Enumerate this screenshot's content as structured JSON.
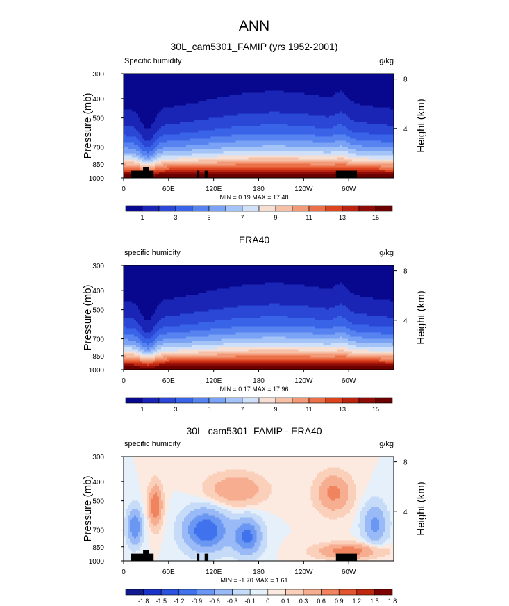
{
  "figure": {
    "title": "ANN"
  },
  "colors": {
    "full_levels": [
      "#08088e",
      "#1a24b5",
      "#2a47d6",
      "#3a64e8",
      "#5683f0",
      "#7aa2f5",
      "#a4c4f8",
      "#cfe0f8",
      "#f6ded2",
      "#f6c0a6",
      "#f29a78",
      "#eb6f47",
      "#dc4420",
      "#bb2410",
      "#8e0b06",
      "#6b0000"
    ],
    "diff_levels": [
      "#0f1b8f",
      "#1b33c6",
      "#2c53e0",
      "#3f72ec",
      "#6a97f2",
      "#99baf6",
      "#c6dbf8",
      "#e6f0fa",
      "#fce9df",
      "#fad0bb",
      "#f7ad8f",
      "#f0845f",
      "#e2552e",
      "#c0280e",
      "#7e0000"
    ],
    "land": "#000000"
  },
  "chart_data": [
    {
      "type": "heatmap",
      "panel": "top",
      "title": "30L_cam5301_FAMIP (yrs 1952-2001)",
      "left_label": "Specific humidity",
      "right_label": "g/kg",
      "ylabel": "Pressure (mb)",
      "y2label": "Height (km)",
      "xlim": [
        0,
        360
      ],
      "ylim": [
        1000,
        300
      ],
      "x_ticks": [
        "0",
        "60E",
        "120E",
        "180",
        "120W",
        "60W"
      ],
      "y_ticks": [
        "300",
        "400",
        "500",
        "700",
        "850",
        "1000"
      ],
      "y2_ticks": [
        "8",
        "4"
      ],
      "min": 0.19,
      "max": 17.48,
      "minmax_text": "MIN =   0.19  MAX =  17.48",
      "colorbar_labels": [
        "1",
        "3",
        "5",
        "7",
        "9",
        "11",
        "13",
        "15"
      ]
    },
    {
      "type": "heatmap",
      "panel": "middle",
      "title": "ERA40",
      "left_label": "specific humidity",
      "right_label": "g/kg",
      "ylabel": "Pressure (mb)",
      "y2label": "Height (km)",
      "xlim": [
        0,
        360
      ],
      "ylim": [
        1000,
        300
      ],
      "x_ticks": [
        "0",
        "60E",
        "120E",
        "180",
        "120W",
        "60W"
      ],
      "y_ticks": [
        "300",
        "400",
        "500",
        "700",
        "850",
        "1000"
      ],
      "y2_ticks": [
        "8",
        "4"
      ],
      "min": 0.17,
      "max": 17.96,
      "minmax_text": "MIN =   0.17  MAX =  17.96",
      "colorbar_labels": [
        "1",
        "3",
        "5",
        "7",
        "9",
        "11",
        "13",
        "15"
      ]
    },
    {
      "type": "heatmap",
      "panel": "bottom",
      "title": "30L_cam5301_FAMIP - ERA40",
      "left_label": "specific humidity",
      "right_label": "g/kg",
      "ylabel": "Pressure (mb)",
      "y2label": "Height (km)",
      "xlim": [
        0,
        360
      ],
      "ylim": [
        1000,
        300
      ],
      "x_ticks": [
        "0",
        "60E",
        "120E",
        "180",
        "120W",
        "60W"
      ],
      "y_ticks": [
        "300",
        "400",
        "500",
        "700",
        "850",
        "1000"
      ],
      "y2_ticks": [
        "8",
        "4"
      ],
      "min": -1.7,
      "max": 1.61,
      "minmax_text": "MIN =  -1.70  MAX =   1.61",
      "colorbar_labels": [
        "-1.8",
        "-1.5",
        "-1.2",
        "-0.9",
        "-0.6",
        "-0.3",
        "-0.1",
        "0",
        "0.1",
        "0.3",
        "0.6",
        "0.9",
        "1.2",
        "1.5",
        "1.8"
      ]
    }
  ]
}
